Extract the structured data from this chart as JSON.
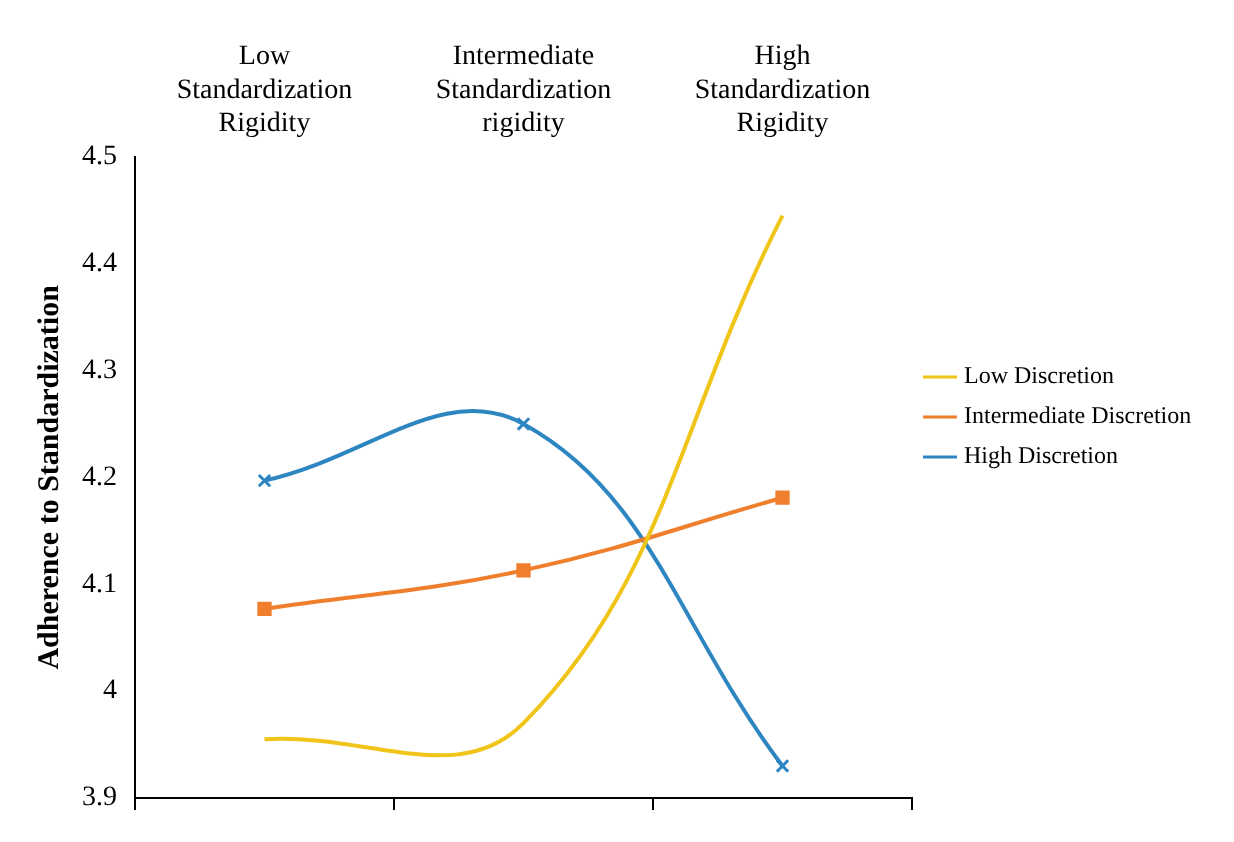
{
  "chart_data": {
    "type": "line",
    "ylabel": "Adherence to Standardization",
    "categories": [
      "Low Standardization Rigidity",
      "Intermediate Standardization rigidity",
      "High Standardization Rigidity"
    ],
    "series": [
      {
        "name": "Low Discretion",
        "color": "#f0c419",
        "values": [
          3.955,
          3.97,
          4.445
        ],
        "marker": "none"
      },
      {
        "name": "Intermediate Discretion",
        "color": "#f07f2d",
        "values": [
          4.077,
          4.113,
          4.181
        ],
        "marker": "square"
      },
      {
        "name": "High Discretion",
        "color": "#2e86c1",
        "values": [
          4.197,
          4.25,
          3.93
        ],
        "marker": "cross"
      }
    ],
    "ylim": [
      3.9,
      4.5
    ],
    "yticks": [
      3.9,
      4,
      4.1,
      4.2,
      4.3,
      4.4,
      4.5
    ],
    "grid": false,
    "legend": "right"
  }
}
